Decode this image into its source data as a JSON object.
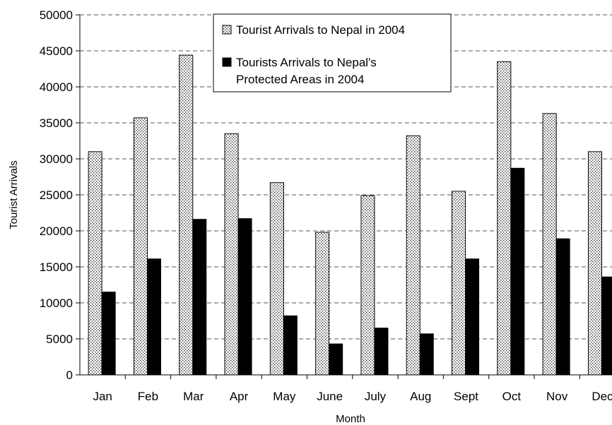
{
  "chart_data": {
    "type": "bar",
    "title": "",
    "xlabel": "Month",
    "ylabel": "Tourist Arrivals",
    "ylim": [
      0,
      50000
    ],
    "yticks": [
      0,
      5000,
      10000,
      15000,
      20000,
      25000,
      30000,
      35000,
      40000,
      45000,
      50000
    ],
    "grid": "horizontal dashed",
    "legend_position": "top-center",
    "categories": [
      "Jan",
      "Feb",
      "Mar",
      "Apr",
      "May",
      "June",
      "July",
      "Aug",
      "Sept",
      "Oct",
      "Nov",
      "Dec"
    ],
    "series": [
      {
        "name": "Tourist Arrivals to Nepal in 2004",
        "fill": "dotted",
        "values": [
          31000,
          35700,
          44400,
          33500,
          26700,
          19800,
          24900,
          33200,
          25500,
          43500,
          36300,
          31000
        ]
      },
      {
        "name_lines": [
          "Tourists Arrivals to Nepal's",
          "Protected Areas in 2004"
        ],
        "fill": "solid-black",
        "values": [
          11500,
          16100,
          21600,
          21700,
          8200,
          4300,
          6500,
          5700,
          16100,
          28700,
          18900,
          13600
        ]
      }
    ]
  }
}
